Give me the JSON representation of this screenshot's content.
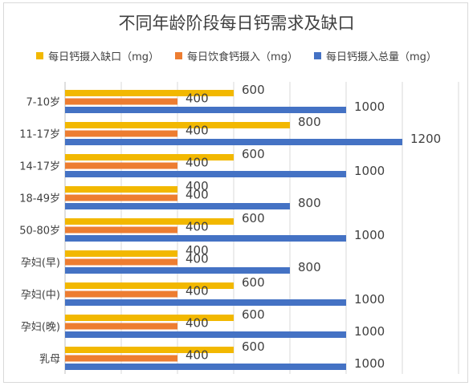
{
  "chart_data": {
    "type": "bar",
    "orientation": "horizontal",
    "title": "不同年龄阶段每日钙需求及缺口",
    "categories": [
      "7-10岁",
      "11-17岁",
      "14-17岁",
      "18-49岁",
      "50-80岁",
      "孕妇(早)",
      "孕妇(中)",
      "孕妇(晚)",
      "乳母"
    ],
    "series": [
      {
        "name": "每日钙摄入缺口（mg）",
        "color": "#f2b800",
        "values": [
          600,
          800,
          600,
          400,
          600,
          400,
          600,
          600,
          600
        ]
      },
      {
        "name": "每日饮食钙摄入（mg）",
        "color": "#ed7d31",
        "values": [
          400,
          400,
          400,
          400,
          400,
          400,
          400,
          400,
          400
        ]
      },
      {
        "name": "每日钙摄入总量（mg）",
        "color": "#4472c4",
        "values": [
          1000,
          1200,
          1000,
          800,
          1000,
          800,
          1000,
          1000,
          1000
        ]
      }
    ],
    "xlim": [
      0,
      1400
    ],
    "grid": true,
    "legend_position": "top"
  }
}
